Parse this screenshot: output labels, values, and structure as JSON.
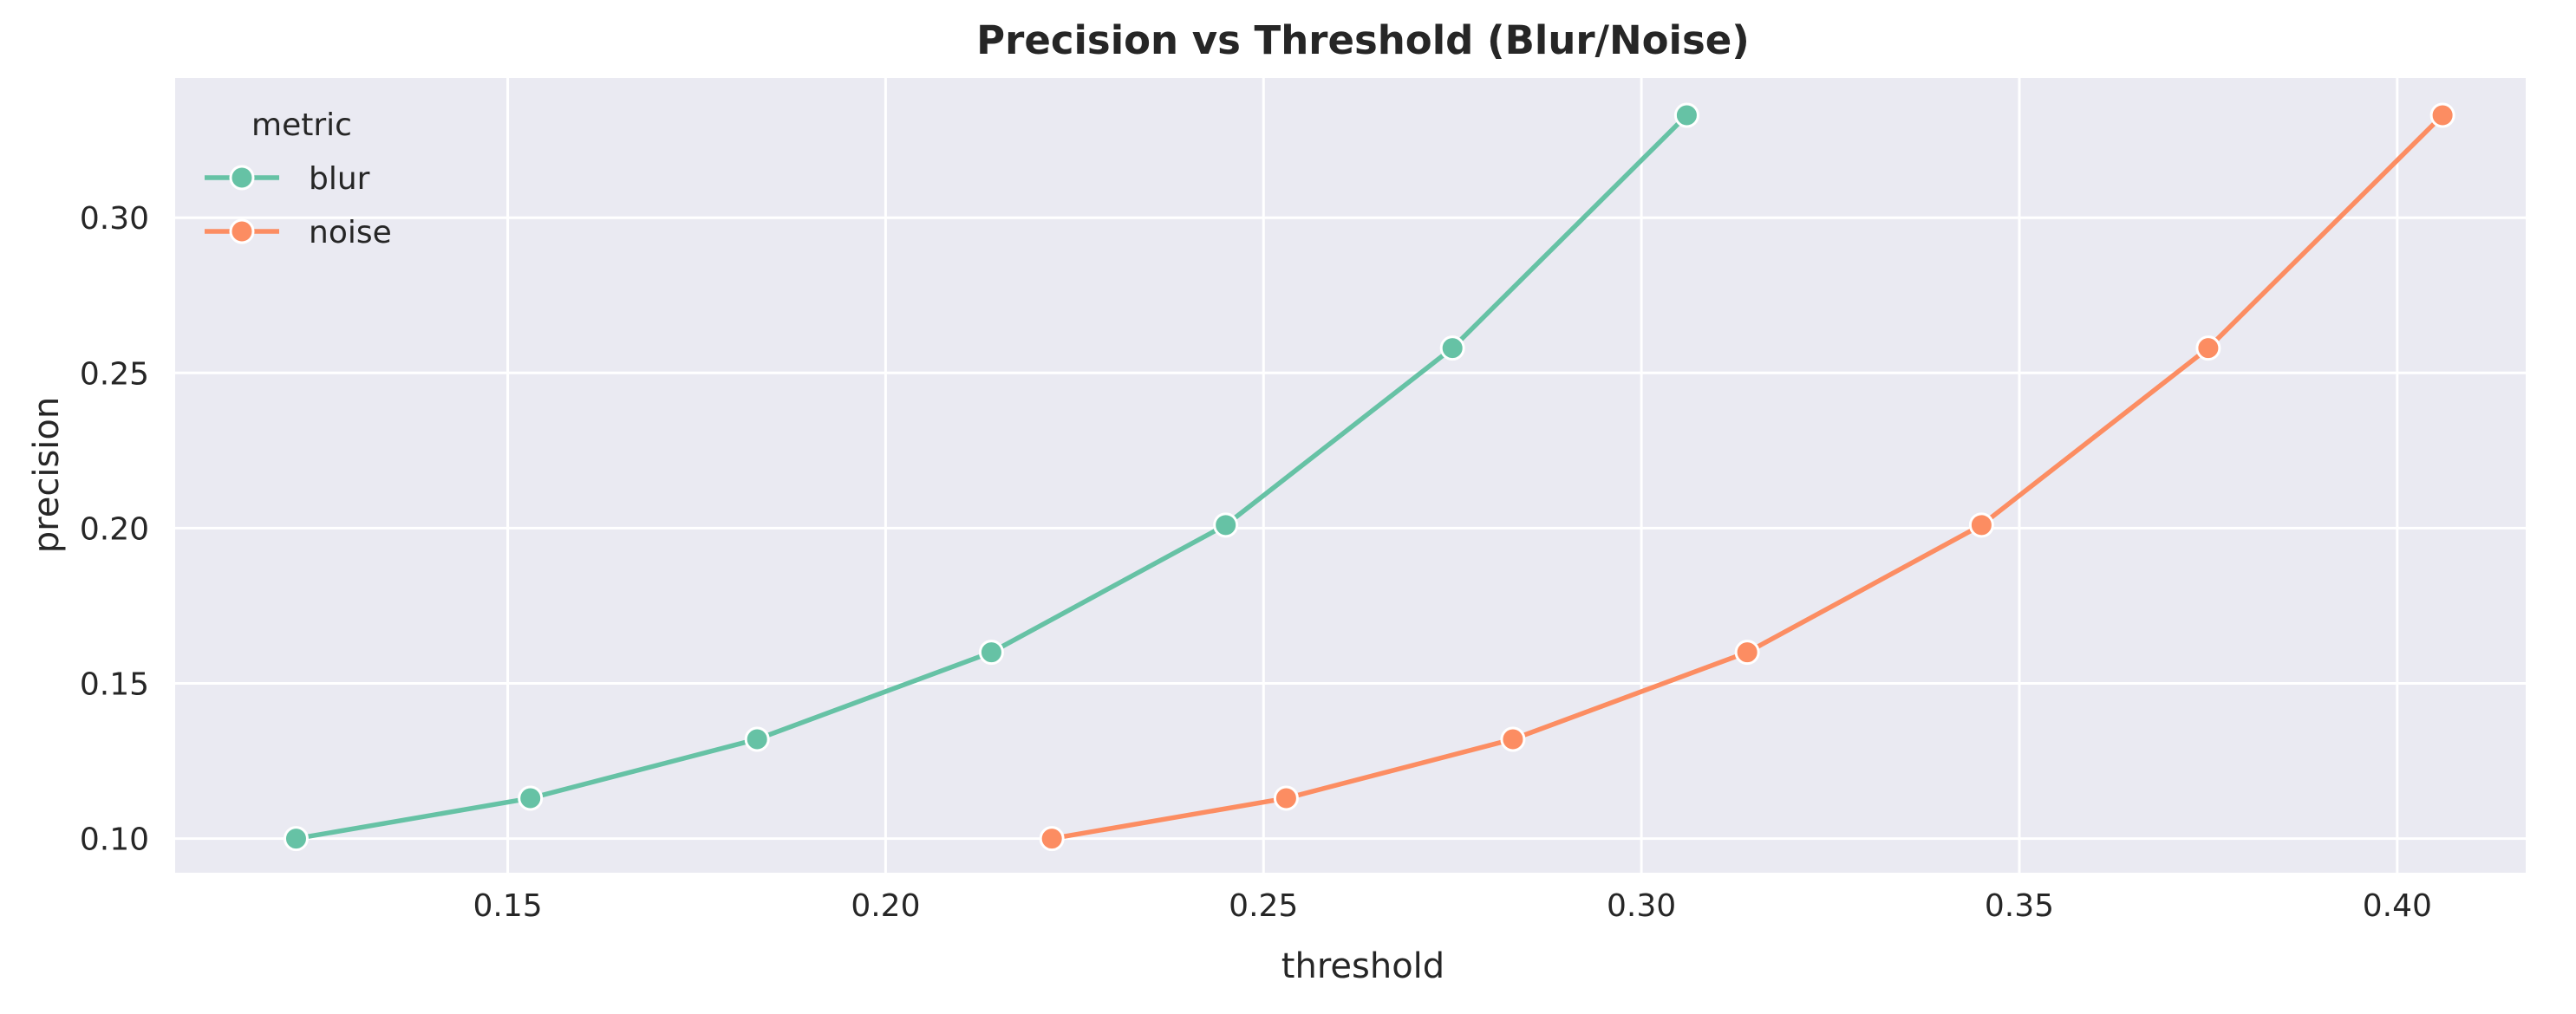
{
  "chart_data": {
    "type": "line",
    "title": "Precision vs Threshold (Blur/Noise)",
    "xlabel": "threshold",
    "ylabel": "precision",
    "xlim": [
      0.106,
      0.417
    ],
    "ylim": [
      0.089,
      0.345
    ],
    "x_ticks": [
      "0.15",
      "0.20",
      "0.25",
      "0.30",
      "0.35",
      "0.40"
    ],
    "y_ticks": [
      "0.10",
      "0.15",
      "0.20",
      "0.25",
      "0.30"
    ],
    "grid": true,
    "legend": {
      "title": "metric",
      "placement": "top-left"
    },
    "series": [
      {
        "name": "blur",
        "color": "#66c2a5",
        "x": [
          0.122,
          0.153,
          0.183,
          0.214,
          0.245,
          0.275,
          0.306
        ],
        "y": [
          0.1,
          0.113,
          0.132,
          0.16,
          0.201,
          0.258,
          0.333
        ]
      },
      {
        "name": "noise",
        "color": "#fc8d62",
        "x": [
          0.222,
          0.253,
          0.283,
          0.314,
          0.345,
          0.375,
          0.406
        ],
        "y": [
          0.1,
          0.113,
          0.132,
          0.16,
          0.201,
          0.258,
          0.333
        ]
      }
    ]
  }
}
